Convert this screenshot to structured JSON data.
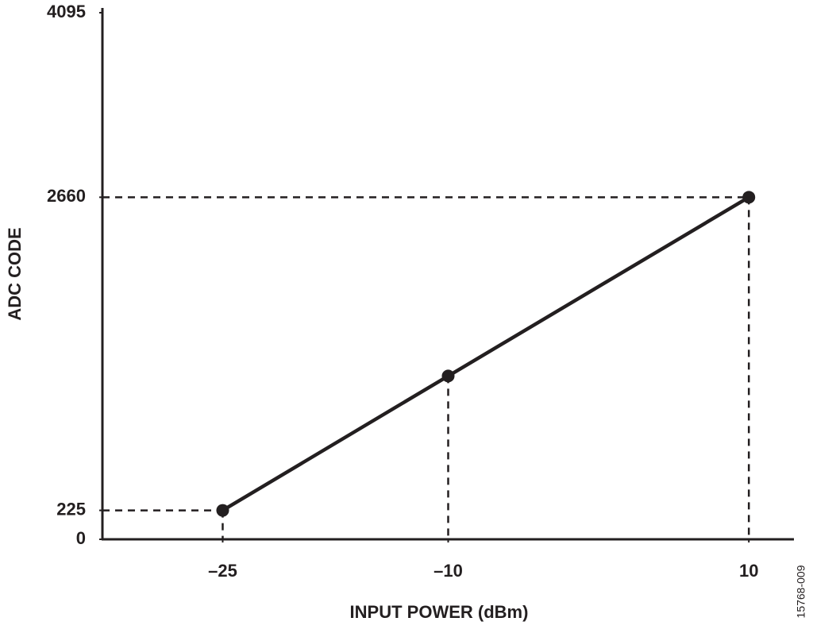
{
  "chart_data": {
    "type": "line",
    "x_label": "INPUT POWER (dBm)",
    "y_label": "ADC CODE",
    "annotation": "15768-009",
    "series": [
      {
        "color": "#231f20",
        "x": [
          -25,
          -10,
          10
        ],
        "values": [
          225,
          1270,
          2660
        ]
      }
    ],
    "xlim": [
      -33,
      13
    ],
    "xticks": [
      {
        "value": -25,
        "label": "–25"
      },
      {
        "value": -10,
        "label": "–10"
      },
      10
    ],
    "ylim": [
      0,
      4095
    ],
    "yticks": [
      0,
      225,
      2660,
      4095
    ],
    "grid": false,
    "markers": true
  }
}
